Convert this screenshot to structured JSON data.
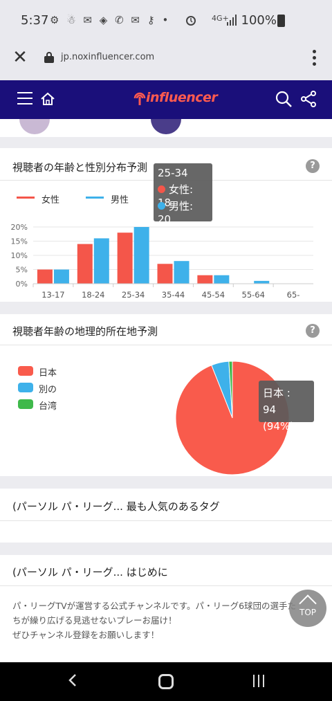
{
  "status_bar": {
    "time": "5:37",
    "icons_left": "⚙ ☃ ✉ ◈ ✆ ✉ ⚷ •",
    "network": "4G+",
    "battery": "100%"
  },
  "browser": {
    "url": "jp.noxinfluencer.com",
    "close_label": "✕"
  },
  "header": {
    "logo_text": "influencer"
  },
  "age_gender_card": {
    "title": "視聴者の年齢と性別分布予測",
    "help": "?",
    "tooltip": {
      "label": "25-34",
      "female": "女性: 18",
      "male": "男性: 20"
    },
    "chart_data": {
      "type": "bar",
      "categories": [
        "13-17",
        "18-24",
        "25-34",
        "35-44",
        "45-54",
        "55-64",
        "65-"
      ],
      "series": [
        {
          "name": "女性",
          "values": [
            5,
            14,
            18,
            7,
            3,
            0,
            0
          ],
          "color": "#f4564a"
        },
        {
          "name": "男性",
          "values": [
            5,
            16,
            20,
            8,
            3,
            1,
            0
          ],
          "color": "#3eb1ea"
        }
      ],
      "yticks": [
        "20%",
        "15%",
        "10%",
        "5%",
        "0%"
      ],
      "ylim": [
        0,
        20
      ],
      "legend": "top-left"
    }
  },
  "geo_card": {
    "title": "視聴者年齢の地理的所在地予測",
    "help": "?",
    "tooltip": {
      "line1": "日本 :",
      "line2": "94 (94%)"
    },
    "chart_data": {
      "type": "pie",
      "categories": [
        "日本",
        "別の",
        "台湾"
      ],
      "values": [
        94,
        5,
        1
      ],
      "colors": [
        "#f95b4c",
        "#3eb1ea",
        "#3fb94b"
      ],
      "legend": "left"
    }
  },
  "tags_card": {
    "title": "(パーソル パ・リーグ... 最も人気のあるタグ"
  },
  "intro_card": {
    "title": "(パーソル パ・リーグ... はじめに",
    "line1": "パ・リーグTVが運営する公式チャンネルです。パ・リーグ6球団の選手た",
    "line2": "ちが繰り広げる見逃せないプレーお届け！",
    "line3": "ぜひチャンネル登録をお願いします！"
  },
  "top_button": {
    "label": "TOP"
  }
}
